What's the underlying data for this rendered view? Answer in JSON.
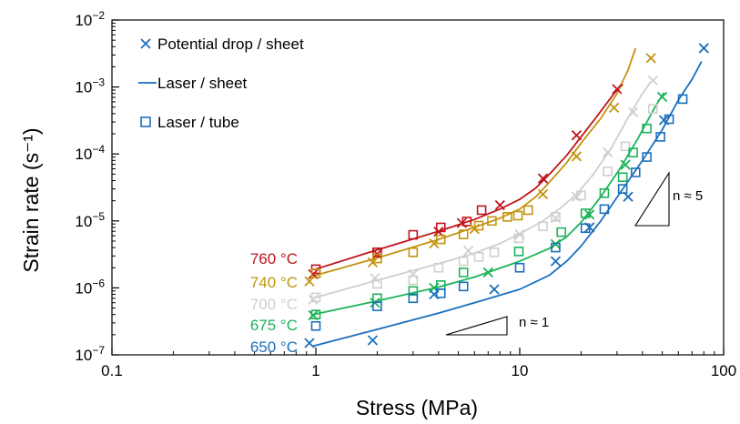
{
  "chart_data": {
    "type": "scatter",
    "title": "",
    "xlabel": "Stress (MPa)",
    "ylabel": "Strain rate (s⁻¹)",
    "x_scale": "log",
    "y_scale": "log",
    "xlim": [
      0.1,
      100
    ],
    "ylim": [
      1e-07,
      0.01
    ],
    "x_ticks": [
      {
        "value": 0.1,
        "label": "0.1"
      },
      {
        "value": 1,
        "label": "1"
      },
      {
        "value": 10,
        "label": "10"
      },
      {
        "value": 100,
        "label": "100"
      }
    ],
    "y_ticks": [
      {
        "value": 1e-07,
        "base": "10",
        "exp": "−7"
      },
      {
        "value": 1e-06,
        "base": "10",
        "exp": "−6"
      },
      {
        "value": 1e-05,
        "base": "10",
        "exp": "−5"
      },
      {
        "value": 0.0001,
        "base": "10",
        "exp": "−4"
      },
      {
        "value": 0.001,
        "base": "10",
        "exp": "−3"
      },
      {
        "value": 0.01,
        "base": "10",
        "exp": "−2"
      }
    ],
    "grid": false,
    "legend": {
      "placement": "top-left",
      "entries": [
        {
          "label": "Potential drop / sheet",
          "marker": "cross"
        },
        {
          "label": "Laser / sheet",
          "marker": "line"
        },
        {
          "label": "Laser / tube",
          "marker": "square"
        }
      ],
      "color": "#1a6fbd"
    },
    "series": [
      {
        "name": "760 °C",
        "color": "#c0141c",
        "potential_drop_sheet": [
          [
            0.97,
            1.6e-06
          ],
          [
            2.0,
            3.2e-06
          ],
          [
            4.0,
            6.9e-06
          ],
          [
            5.2,
            9.3e-06
          ],
          [
            8.0,
            1.72e-05
          ],
          [
            13,
            4.3e-05
          ],
          [
            19,
            0.00019
          ],
          [
            30,
            0.00093
          ]
        ],
        "laser_sheet": [
          [
            0.97,
            1.85e-06
          ],
          [
            2,
            3.7e-06
          ],
          [
            4,
            7e-06
          ],
          [
            6,
            1.05e-05
          ],
          [
            8,
            1.5e-05
          ],
          [
            10,
            2.1e-05
          ],
          [
            12,
            3.1e-05
          ],
          [
            14,
            5e-05
          ],
          [
            17,
            9.5e-05
          ],
          [
            20,
            0.00018
          ],
          [
            24,
            0.00037
          ],
          [
            29,
            0.0008
          ],
          [
            32,
            0.0011
          ]
        ],
        "laser_tube": [
          [
            1.0,
            1.9e-06
          ],
          [
            2.0,
            3.4e-06
          ],
          [
            3.0,
            6.2e-06
          ],
          [
            4.1,
            8e-06
          ],
          [
            5.5,
            9.8e-06
          ],
          [
            6.5,
            1.45e-05
          ]
        ]
      },
      {
        "name": "740 °C",
        "color": "#c3930f",
        "potential_drop_sheet": [
          [
            0.93,
            1.25e-06
          ],
          [
            1.9,
            2.4e-06
          ],
          [
            3.8,
            4.6e-06
          ],
          [
            6.0,
            7.6e-06
          ],
          [
            13,
            2.5e-05
          ],
          [
            19,
            9.2e-05
          ],
          [
            29,
            0.00049
          ],
          [
            44,
            0.0027
          ]
        ],
        "laser_sheet": [
          [
            0.97,
            1.5e-06
          ],
          [
            2,
            2.8e-06
          ],
          [
            4,
            5.3e-06
          ],
          [
            6,
            8e-06
          ],
          [
            8,
            1.1e-05
          ],
          [
            10,
            1.5e-05
          ],
          [
            12,
            2.3e-05
          ],
          [
            14,
            3.8e-05
          ],
          [
            17,
            7.4e-05
          ],
          [
            20,
            0.000145
          ],
          [
            25,
            0.00034
          ],
          [
            30,
            0.0008
          ],
          [
            34,
            0.0018
          ],
          [
            37,
            0.0038
          ]
        ],
        "laser_tube": [
          [
            1.0,
            1.65e-06
          ],
          [
            2.0,
            2.75e-06
          ],
          [
            3.0,
            3.4e-06
          ],
          [
            4.1,
            5.3e-06
          ],
          [
            5.3,
            6.3e-06
          ],
          [
            6.3,
            8.5e-06
          ],
          [
            7.3,
            1e-05
          ],
          [
            8.7,
            1.15e-05
          ],
          [
            9.8,
            1.2e-05
          ],
          [
            11,
            1.45e-05
          ]
        ]
      },
      {
        "name": "700 °C",
        "color": "#cfcfcf",
        "potential_drop_sheet": [
          [
            0.97,
            6.7e-07
          ],
          [
            1.95,
            1.4e-06
          ],
          [
            3.0,
            1.6e-06
          ],
          [
            5.6,
            3.6e-06
          ],
          [
            10,
            6.3e-06
          ],
          [
            15,
            1.1e-05
          ],
          [
            19,
            2.3e-05
          ],
          [
            27,
            0.000106
          ],
          [
            36,
            0.00042
          ],
          [
            45,
            0.00125
          ]
        ],
        "laser_sheet": [
          [
            0.97,
            7e-07
          ],
          [
            2,
            1.3e-06
          ],
          [
            4,
            2.3e-06
          ],
          [
            6,
            3.3e-06
          ],
          [
            8,
            4.6e-06
          ],
          [
            10,
            6.4e-06
          ],
          [
            13,
            1e-05
          ],
          [
            16,
            1.6e-05
          ],
          [
            19,
            2.5e-05
          ],
          [
            23,
            5e-05
          ],
          [
            28,
            0.00012
          ],
          [
            34,
            0.00035
          ],
          [
            40,
            0.0008
          ],
          [
            44,
            0.0012
          ]
        ],
        "laser_tube": [
          [
            1.0,
            7.2e-07
          ],
          [
            2.0,
            1.15e-06
          ],
          [
            3.0,
            1.3e-06
          ],
          [
            4.0,
            2e-06
          ],
          [
            5.3,
            2.5e-06
          ],
          [
            6.3,
            2.9e-06
          ],
          [
            7.5,
            3.4e-06
          ],
          [
            9.9,
            5.5e-06
          ],
          [
            13,
            8.3e-06
          ],
          [
            15,
            1.15e-05
          ],
          [
            20,
            2.4e-05
          ],
          [
            27,
            5.5e-05
          ],
          [
            33,
            0.00013
          ],
          [
            45,
            0.00047
          ]
        ]
      },
      {
        "name": "675 °C",
        "color": "#1cb359",
        "potential_drop_sheet": [
          [
            0.97,
            3.9e-07
          ],
          [
            1.95,
            6e-07
          ],
          [
            3.8,
            1e-06
          ],
          [
            7,
            1.7e-06
          ],
          [
            15,
            4.5e-06
          ],
          [
            22,
            1.24e-05
          ],
          [
            33,
            6.9e-05
          ],
          [
            50,
            0.00071
          ]
        ],
        "laser_sheet": [
          [
            0.97,
            4e-07
          ],
          [
            2,
            6.4e-07
          ],
          [
            4,
            1.03e-06
          ],
          [
            6,
            1.45e-06
          ],
          [
            10,
            2.5e-06
          ],
          [
            14,
            3.9e-06
          ],
          [
            17,
            5.8e-06
          ],
          [
            20,
            9.5e-06
          ],
          [
            25,
            2.3e-05
          ],
          [
            31,
            6e-05
          ],
          [
            38,
            0.00017
          ],
          [
            46,
            0.0005
          ],
          [
            51,
            0.00082
          ]
        ],
        "laser_tube": [
          [
            1.0,
            4e-07
          ],
          [
            2.0,
            7e-07
          ],
          [
            3.0,
            9e-07
          ],
          [
            4.1,
            1.1e-06
          ],
          [
            5.3,
            1.7e-06
          ],
          [
            9.9,
            3.5e-06
          ],
          [
            16,
            6.8e-06
          ],
          [
            21,
            1.3e-05
          ],
          [
            26,
            2.6e-05
          ],
          [
            32,
            4.5e-05
          ],
          [
            36,
            0.000105
          ],
          [
            42,
            0.00024
          ]
        ]
      },
      {
        "name": "650 °C",
        "color": "#1a6fbd",
        "potential_drop_sheet": [
          [
            0.93,
            1.5e-07
          ],
          [
            1.9,
            1.65e-07
          ],
          [
            3.8,
            8e-07
          ],
          [
            7.5,
            9.5e-07
          ],
          [
            15,
            2.5e-06
          ],
          [
            22,
            8e-06
          ],
          [
            34,
            2.3e-05
          ],
          [
            51,
            0.00032
          ],
          [
            80,
            0.0038
          ]
        ],
        "laser_sheet": [
          [
            0.97,
            1.35e-07
          ],
          [
            2,
            2.4e-07
          ],
          [
            4,
            4.2e-07
          ],
          [
            6,
            6e-07
          ],
          [
            10,
            9.5e-07
          ],
          [
            14,
            1.55e-06
          ],
          [
            17,
            2.5e-06
          ],
          [
            20,
            4.2e-06
          ],
          [
            25,
            1e-05
          ],
          [
            31,
            2.6e-05
          ],
          [
            40,
            8e-05
          ],
          [
            50,
            0.00023
          ],
          [
            60,
            0.00064
          ],
          [
            70,
            0.0013
          ],
          [
            78,
            0.0024
          ]
        ],
        "laser_tube": [
          [
            1.0,
            2.7e-07
          ],
          [
            2.0,
            5.3e-07
          ],
          [
            3.0,
            7e-07
          ],
          [
            4.1,
            8.3e-07
          ],
          [
            5.3,
            1.05e-06
          ],
          [
            10,
            2e-06
          ],
          [
            15,
            4e-06
          ],
          [
            21,
            7.8e-06
          ],
          [
            26,
            1.5e-05
          ],
          [
            32,
            3e-05
          ],
          [
            37,
            5.3e-05
          ],
          [
            42,
            9e-05
          ],
          [
            49,
            0.00018
          ],
          [
            54,
            0.00033
          ],
          [
            63,
            0.00066
          ]
        ]
      }
    ],
    "temperature_labels": [
      "760 °C",
      "740 °C",
      "700 °C",
      "675 °C",
      "650 °C"
    ],
    "slope_annotations": [
      {
        "label": "n ≈ 1"
      },
      {
        "label": "n ≈ 5"
      }
    ]
  }
}
